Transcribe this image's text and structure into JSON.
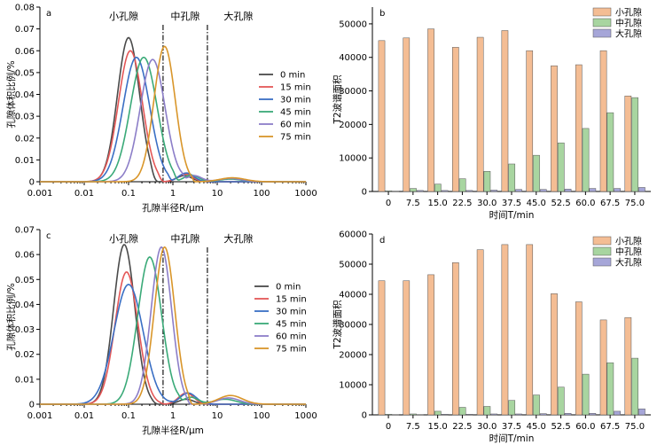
{
  "chart_data": [
    {
      "id": "a",
      "panel_label": "a",
      "type": "line",
      "x_scale": "log",
      "xlabel": "孔隙半径R/μm",
      "ylabel": "孔隙体积比例/%",
      "xlim": [
        0.001,
        1000
      ],
      "ylim": [
        0,
        0.08
      ],
      "x_ticks": [
        0.001,
        0.01,
        0.1,
        1,
        10,
        100,
        1000
      ],
      "x_tick_labels": [
        "0.001",
        "0.01",
        "0.1",
        "1",
        "10",
        "100",
        "1000"
      ],
      "y_ticks": [
        0,
        0.01,
        0.02,
        0.03,
        0.04,
        0.05,
        0.06,
        0.07,
        0.08
      ],
      "y_tick_labels": [
        "0",
        "0.01",
        "0.02",
        "0.03",
        "0.04",
        "0.05",
        "0.06",
        "0.07",
        "0.08"
      ],
      "region_boundaries": [
        0.6,
        6
      ],
      "region_labels": [
        "小孔隙",
        "中孔隙",
        "大孔隙"
      ],
      "legend_position": "middle-right",
      "series": [
        {
          "name": "0 min",
          "color": "#4a4a4a",
          "peaks": [
            [
              0.1,
              0.066,
              0.25
            ],
            [
              1.8,
              0.0028,
              0.17
            ]
          ],
          "cutoff": [
            0.3,
            0.48
          ]
        },
        {
          "name": "15 min",
          "color": "#e45757",
          "peaks": [
            [
              0.11,
              0.06,
              0.27
            ],
            [
              1.9,
              0.0035,
              0.17
            ]
          ],
          "cutoff": [
            0.45,
            0.65
          ]
        },
        {
          "name": "30 min",
          "color": "#3a6fc4",
          "peaks": [
            [
              0.15,
              0.057,
              0.3
            ],
            [
              2.0,
              0.004,
              0.17
            ]
          ],
          "cutoff": [
            0.75,
            1.0
          ]
        },
        {
          "name": "45 min",
          "color": "#3aaa78",
          "peaks": [
            [
              0.22,
              0.057,
              0.3
            ],
            [
              2.6,
              0.003,
              0.17
            ],
            [
              20,
              0.0012,
              0.25
            ]
          ],
          "cutoff": [
            1.0,
            1.4
          ]
        },
        {
          "name": "60 min",
          "color": "#8c7ec8",
          "peaks": [
            [
              0.35,
              0.056,
              0.28
            ],
            [
              3.0,
              0.0028,
              0.17
            ],
            [
              20,
              0.0015,
              0.25
            ]
          ],
          "cutoff": [
            1.6,
            2.1
          ]
        },
        {
          "name": "75 min",
          "color": "#d9962a",
          "peaks": [
            [
              0.65,
              0.062,
              0.24
            ],
            [
              22,
              0.0018,
              0.28
            ]
          ],
          "cutoff": [
            2.6,
            3.2
          ]
        }
      ]
    },
    {
      "id": "b",
      "panel_label": "b",
      "type": "bar",
      "xlabel": "时间T/min",
      "ylabel": "T2波谱面积",
      "ylim": [
        0,
        55000
      ],
      "y_ticks": [
        0,
        10000,
        20000,
        30000,
        40000,
        50000
      ],
      "y_tick_labels": [
        "0",
        "10000",
        "20000",
        "30000",
        "40000",
        "50000"
      ],
      "categories": [
        "0",
        "7.5",
        "15.0",
        "22.5",
        "30.0",
        "37.5",
        "45.0",
        "52.5",
        "60.0",
        "67.5",
        "75.0"
      ],
      "legend_position": "top-right",
      "series": [
        {
          "name": "小孔隙",
          "color": "#f4bd94",
          "values": [
            45000,
            45800,
            48500,
            43000,
            46000,
            48000,
            42000,
            37500,
            37800,
            42000,
            28500
          ]
        },
        {
          "name": "中孔隙",
          "color": "#a8d5a0",
          "values": [
            200,
            900,
            2200,
            3800,
            6000,
            8200,
            10800,
            14500,
            18800,
            23500,
            28000
          ]
        },
        {
          "name": "大孔隙",
          "color": "#a6a6d8",
          "values": [
            100,
            300,
            300,
            300,
            400,
            600,
            600,
            700,
            900,
            900,
            1200
          ]
        }
      ]
    },
    {
      "id": "c",
      "panel_label": "c",
      "type": "line",
      "x_scale": "log",
      "xlabel": "孔隙半径R/μm",
      "ylabel": "孔隙体积比例/%",
      "xlim": [
        0.001,
        1000
      ],
      "ylim": [
        0,
        0.07
      ],
      "x_ticks": [
        0.001,
        0.01,
        0.1,
        1,
        10,
        100,
        1000
      ],
      "x_tick_labels": [
        "0.001",
        "0.01",
        "0.1",
        "1",
        "10",
        "100",
        "1000"
      ],
      "y_ticks": [
        0,
        0.01,
        0.02,
        0.03,
        0.04,
        0.05,
        0.06,
        0.07
      ],
      "y_tick_labels": [
        "0",
        "0.01",
        "0.02",
        "0.03",
        "0.04",
        "0.05",
        "0.06",
        "0.07"
      ],
      "region_boundaries": [
        0.6,
        6
      ],
      "region_labels": [
        "小孔隙",
        "中孔隙",
        "大孔隙"
      ],
      "legend_position": "middle-right",
      "series": [
        {
          "name": "0 min",
          "color": "#4a4a4a",
          "peaks": [
            [
              0.08,
              0.064,
              0.24
            ],
            [
              2.0,
              0.002,
              0.17
            ]
          ],
          "cutoff": [
            0.32,
            0.5
          ]
        },
        {
          "name": "15 min",
          "color": "#e45757",
          "peaks": [
            [
              0.09,
              0.053,
              0.26
            ],
            [
              2.0,
              0.0045,
              0.17
            ]
          ],
          "cutoff": [
            0.5,
            0.7
          ]
        },
        {
          "name": "30 min",
          "color": "#3a6fc4",
          "peaks": [
            [
              0.1,
              0.048,
              0.33
            ],
            [
              2.2,
              0.0045,
              0.18
            ]
          ],
          "cutoff": [
            0.9,
            1.2
          ]
        },
        {
          "name": "45 min",
          "color": "#3aaa78",
          "peaks": [
            [
              0.3,
              0.059,
              0.27
            ],
            [
              2.5,
              0.0028,
              0.17
            ],
            [
              15,
              0.002,
              0.25
            ]
          ],
          "cutoff": [
            1.3,
            1.8
          ]
        },
        {
          "name": "60 min",
          "color": "#8c7ec8",
          "peaks": [
            [
              0.55,
              0.063,
              0.23
            ],
            [
              18,
              0.0025,
              0.25
            ]
          ],
          "cutoff": [
            2.0,
            2.6
          ]
        },
        {
          "name": "75 min",
          "color": "#d9962a",
          "peaks": [
            [
              0.65,
              0.063,
              0.23
            ],
            [
              20,
              0.0035,
              0.27
            ]
          ],
          "cutoff": [
            2.2,
            2.8
          ]
        }
      ]
    },
    {
      "id": "d",
      "panel_label": "d",
      "type": "bar",
      "xlabel": "时间T/min",
      "ylabel": "T2波谱面积",
      "ylim": [
        0,
        60000
      ],
      "y_ticks": [
        0,
        10000,
        20000,
        30000,
        40000,
        50000,
        60000
      ],
      "y_tick_labels": [
        "0",
        "10000",
        "20000",
        "30000",
        "40000",
        "50000",
        "60000"
      ],
      "categories": [
        "0",
        "7.5",
        "15.0",
        "22.5",
        "30.0",
        "37.5",
        "45.0",
        "52.5",
        "60.0",
        "67.5",
        "75.0"
      ],
      "legend_position": "top-right",
      "series": [
        {
          "name": "小孔隙",
          "color": "#f4bd94",
          "values": [
            44500,
            44500,
            46500,
            50500,
            54800,
            56500,
            56500,
            40200,
            37500,
            31500,
            32300
          ]
        },
        {
          "name": "中孔隙",
          "color": "#a8d5a0",
          "values": [
            200,
            300,
            1200,
            2500,
            2800,
            4800,
            6600,
            9200,
            13500,
            17300,
            18800
          ]
        },
        {
          "name": "大孔隙",
          "color": "#a6a6d8",
          "values": [
            100,
            100,
            200,
            200,
            300,
            300,
            400,
            500,
            500,
            1200,
            2000
          ]
        }
      ]
    }
  ]
}
